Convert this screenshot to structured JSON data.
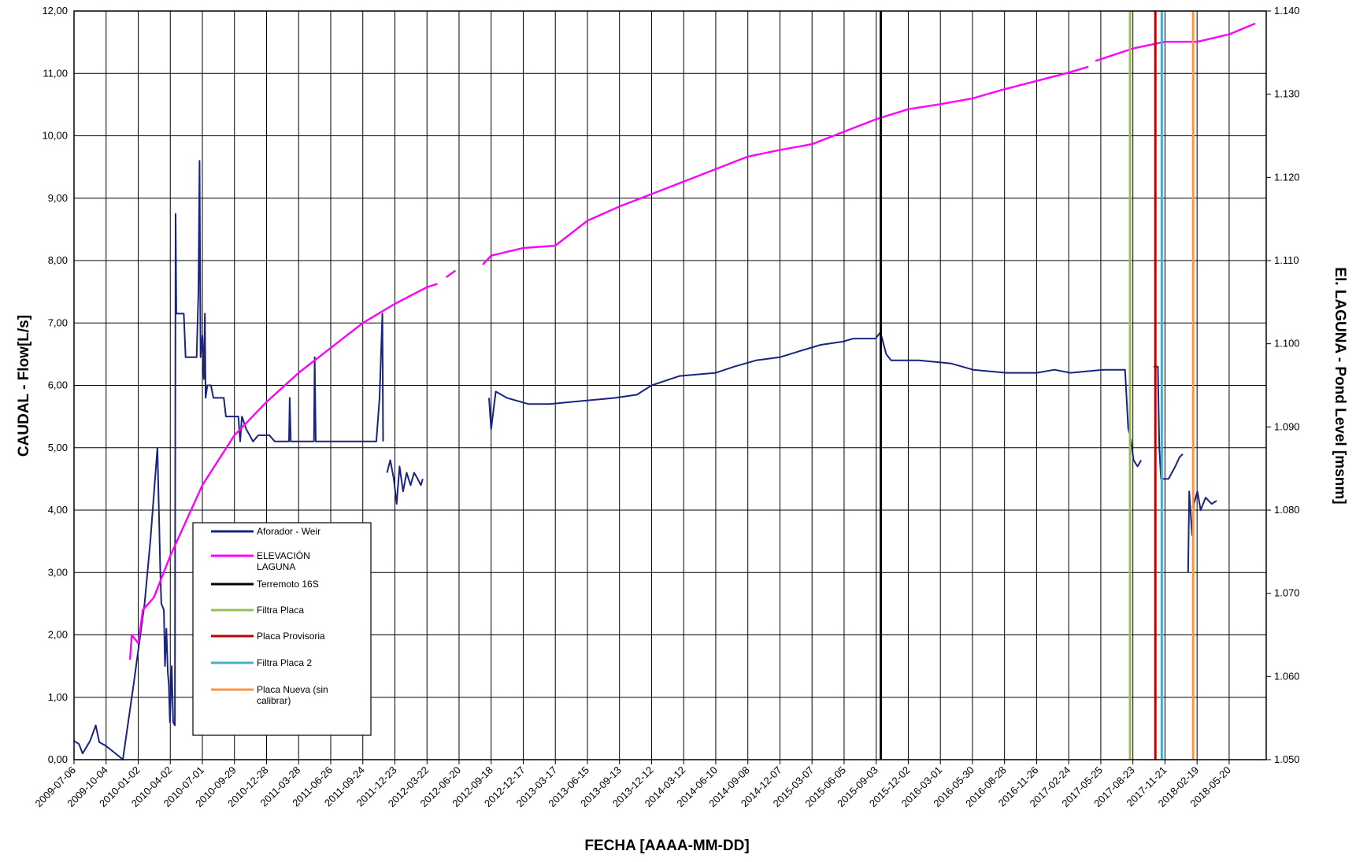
{
  "chart_data": {
    "type": "line",
    "xlabel": "FECHA [AAAA-MM-DD]",
    "ylabel_left": "CAUDAL - Flow[L/s]",
    "ylabel_right": "El. LAGUNA - Pond Level [msnm]",
    "y_left_ticks": [
      "0,00",
      "1,00",
      "2,00",
      "3,00",
      "4,00",
      "5,00",
      "6,00",
      "7,00",
      "8,00",
      "9,00",
      "10,00",
      "11,00",
      "12,00"
    ],
    "y_right_ticks": [
      "1.050",
      "1.060",
      "1.070",
      "1.080",
      "1.090",
      "1.100",
      "1.110",
      "1.120",
      "1.130",
      "1.140"
    ],
    "ylim_left": [
      0,
      12
    ],
    "ylim_right": [
      1050,
      1140
    ],
    "x_range": [
      "2009-07-06",
      "2018-09-01"
    ],
    "x_ticks": [
      "2009-07-06",
      "2009-10-04",
      "2010-01-02",
      "2010-04-02",
      "2010-07-01",
      "2010-09-29",
      "2010-12-28",
      "2011-03-28",
      "2011-06-26",
      "2011-09-24",
      "2011-12-23",
      "2012-03-22",
      "2012-06-20",
      "2012-09-18",
      "2012-12-17",
      "2013-03-17",
      "2013-06-15",
      "2013-09-13",
      "2013-12-12",
      "2014-03-12",
      "2014-06-10",
      "2014-09-08",
      "2014-12-07",
      "2015-03-07",
      "2015-06-05",
      "2015-09-03",
      "2015-12-02",
      "2016-03-01",
      "2016-05-30",
      "2016-08-28",
      "2016-11-26",
      "2017-02-24",
      "2017-05-25",
      "2017-08-23",
      "2017-11-21",
      "2018-02-19",
      "2018-05-20"
    ],
    "grid": true,
    "legend_position": "lower-left",
    "series": [
      {
        "name": "Aforador - Weir",
        "axis": "left",
        "color": "#1a237e",
        "segments": [
          [
            [
              "2009-07-06",
              0.3
            ],
            [
              "2009-07-20",
              0.25
            ],
            [
              "2009-07-30",
              0.1
            ],
            [
              "2009-08-20",
              0.3
            ],
            [
              "2009-09-05",
              0.55
            ],
            [
              "2009-09-15",
              0.28
            ],
            [
              "2009-10-04",
              0.22
            ],
            [
              "2009-11-10",
              0.05
            ],
            [
              "2009-11-20",
              0.0
            ],
            [
              "2009-12-20",
              1.2
            ],
            [
              "2010-01-20",
              2.5
            ],
            [
              "2010-02-05",
              3.5
            ],
            [
              "2010-02-25",
              5.0
            ],
            [
              "2010-03-05",
              3.0
            ],
            [
              "2010-03-08",
              2.5
            ],
            [
              "2010-03-15",
              2.4
            ],
            [
              "2010-03-18",
              1.5
            ],
            [
              "2010-03-22",
              2.1
            ],
            [
              "2010-03-26",
              1.4
            ],
            [
              "2010-03-29",
              1.2
            ],
            [
              "2010-04-01",
              0.6
            ],
            [
              "2010-04-06",
              1.5
            ],
            [
              "2010-04-10",
              0.6
            ],
            [
              "2010-04-15",
              0.55
            ],
            [
              "2010-04-17",
              8.75
            ],
            [
              "2010-04-19",
              7.15
            ],
            [
              "2010-05-10",
              7.15
            ],
            [
              "2010-05-15",
              6.45
            ],
            [
              "2010-06-15",
              6.45
            ],
            [
              "2010-06-20",
              7.5
            ],
            [
              "2010-06-23",
              9.6
            ],
            [
              "2010-06-26",
              6.45
            ],
            [
              "2010-07-01",
              6.8
            ],
            [
              "2010-07-05",
              6.1
            ],
            [
              "2010-07-08",
              7.15
            ],
            [
              "2010-07-10",
              5.8
            ],
            [
              "2010-07-15",
              6.0
            ],
            [
              "2010-07-25",
              6.0
            ],
            [
              "2010-08-01",
              5.8
            ],
            [
              "2010-08-30",
              5.8
            ],
            [
              "2010-09-05",
              5.5
            ],
            [
              "2010-10-10",
              5.5
            ],
            [
              "2010-10-15",
              5.1
            ],
            [
              "2010-10-20",
              5.5
            ],
            [
              "2010-11-01",
              5.3
            ],
            [
              "2010-11-20",
              5.1
            ],
            [
              "2010-12-05",
              5.2
            ],
            [
              "2011-01-05",
              5.2
            ],
            [
              "2011-01-20",
              5.1
            ],
            [
              "2011-03-01",
              5.1
            ],
            [
              "2011-03-03",
              5.8
            ],
            [
              "2011-03-06",
              5.1
            ],
            [
              "2011-05-10",
              5.1
            ],
            [
              "2011-05-12",
              6.45
            ],
            [
              "2011-05-15",
              5.1
            ],
            [
              "2011-10-15",
              5.1
            ],
            [
              "2011-11-01",
              5.1
            ],
            [
              "2011-11-10",
              5.8
            ],
            [
              "2011-11-18",
              7.15
            ],
            [
              "2011-11-20",
              5.1
            ]
          ],
          [
            [
              "2011-12-01",
              4.6
            ],
            [
              "2011-12-10",
              4.8
            ],
            [
              "2011-12-20",
              4.5
            ],
            [
              "2011-12-28",
              4.1
            ],
            [
              "2012-01-05",
              4.7
            ],
            [
              "2012-01-15",
              4.3
            ],
            [
              "2012-01-25",
              4.6
            ],
            [
              "2012-02-05",
              4.4
            ],
            [
              "2012-02-15",
              4.6
            ],
            [
              "2012-02-25",
              4.5
            ],
            [
              "2012-03-05",
              4.4
            ],
            [
              "2012-03-10",
              4.5
            ]
          ],
          [
            [
              "2012-09-12",
              5.8
            ],
            [
              "2012-09-18",
              5.3
            ],
            [
              "2012-10-01",
              5.9
            ],
            [
              "2012-11-01",
              5.8
            ],
            [
              "2013-01-01",
              5.7
            ],
            [
              "2013-03-01",
              5.7
            ],
            [
              "2013-06-01",
              5.75
            ],
            [
              "2013-09-01",
              5.8
            ],
            [
              "2013-11-01",
              5.85
            ],
            [
              "2013-12-12",
              6.0
            ],
            [
              "2014-03-01",
              6.15
            ],
            [
              "2014-06-10",
              6.2
            ],
            [
              "2014-08-01",
              6.3
            ],
            [
              "2014-10-01",
              6.4
            ],
            [
              "2014-12-07",
              6.45
            ],
            [
              "2015-02-01",
              6.55
            ],
            [
              "2015-04-01",
              6.65
            ],
            [
              "2015-06-01",
              6.7
            ],
            [
              "2015-07-01",
              6.75
            ],
            [
              "2015-09-01",
              6.75
            ],
            [
              "2015-09-15",
              6.85
            ],
            [
              "2015-10-01",
              6.5
            ],
            [
              "2015-10-15",
              6.4
            ],
            [
              "2016-01-01",
              6.4
            ],
            [
              "2016-04-01",
              6.35
            ],
            [
              "2016-06-01",
              6.25
            ],
            [
              "2016-09-01",
              6.2
            ],
            [
              "2016-11-26",
              6.2
            ],
            [
              "2017-01-15",
              6.25
            ],
            [
              "2017-03-01",
              6.2
            ],
            [
              "2017-06-01",
              6.25
            ],
            [
              "2017-08-01",
              6.25
            ],
            [
              "2017-08-10",
              5.3
            ],
            [
              "2017-08-15",
              5.2
            ],
            [
              "2017-08-18",
              5.1
            ],
            [
              "2017-08-25",
              4.8
            ],
            [
              "2017-09-05",
              4.7
            ],
            [
              "2017-09-15",
              4.8
            ]
          ],
          [
            [
              "2017-10-20",
              6.3
            ],
            [
              "2017-11-01",
              6.3
            ],
            [
              "2017-11-05",
              5.0
            ],
            [
              "2017-11-10",
              4.5
            ],
            [
              "2017-12-01",
              4.5
            ],
            [
              "2017-12-20",
              4.7
            ],
            [
              "2018-01-01",
              4.85
            ],
            [
              "2018-01-10",
              4.9
            ]
          ],
          [
            [
              "2018-01-25",
              3.0
            ],
            [
              "2018-01-28",
              4.3
            ],
            [
              "2018-02-05",
              3.6
            ],
            [
              "2018-02-10",
              4.1
            ],
            [
              "2018-02-20",
              4.3
            ],
            [
              "2018-03-01",
              4.0
            ],
            [
              "2018-03-15",
              4.2
            ],
            [
              "2018-04-01",
              4.1
            ],
            [
              "2018-04-15",
              4.15
            ]
          ]
        ]
      },
      {
        "name": "ELEVACIÓN LAGUNA",
        "axis": "right",
        "color": "#ff00ff",
        "segments": [
          [
            [
              "2009-12-10",
              1062.0
            ],
            [
              "2009-12-15",
              1065.0
            ],
            [
              "2010-01-02",
              1064.0
            ],
            [
              "2010-01-15",
              1068.0
            ],
            [
              "2010-02-15",
              1069.5
            ],
            [
              "2010-04-02",
              1074.5
            ],
            [
              "2010-07-01",
              1083.0
            ],
            [
              "2010-09-29",
              1089.0
            ],
            [
              "2010-12-28",
              1093.0
            ],
            [
              "2011-03-28",
              1096.5
            ],
            [
              "2011-06-26",
              1099.5
            ],
            [
              "2011-09-24",
              1102.5
            ],
            [
              "2011-12-23",
              1104.8
            ],
            [
              "2012-03-22",
              1106.8
            ],
            [
              "2012-04-20",
              1107.2
            ]
          ],
          [
            [
              "2012-05-15",
              1108.0
            ],
            [
              "2012-06-10",
              1108.8
            ]
          ],
          [
            [
              "2012-08-25",
              1109.5
            ],
            [
              "2012-09-18",
              1110.6
            ],
            [
              "2012-12-17",
              1111.5
            ],
            [
              "2013-03-17",
              1111.8
            ],
            [
              "2013-06-15",
              1114.8
            ],
            [
              "2013-09-13",
              1116.5
            ],
            [
              "2013-12-12",
              1118.0
            ],
            [
              "2014-03-12",
              1119.5
            ],
            [
              "2014-06-10",
              1121.0
            ],
            [
              "2014-09-08",
              1122.5
            ],
            [
              "2014-12-07",
              1123.3
            ],
            [
              "2015-03-07",
              1124.0
            ],
            [
              "2015-06-05",
              1125.5
            ],
            [
              "2015-09-03",
              1127.0
            ],
            [
              "2015-12-02",
              1128.2
            ],
            [
              "2016-03-01",
              1128.8
            ],
            [
              "2016-05-30",
              1129.5
            ],
            [
              "2016-08-28",
              1130.6
            ],
            [
              "2016-11-26",
              1131.6
            ],
            [
              "2017-02-24",
              1132.6
            ],
            [
              "2017-04-20",
              1133.3
            ]
          ],
          [
            [
              "2017-05-10",
              1134.0
            ],
            [
              "2017-08-23",
              1135.5
            ],
            [
              "2017-11-21",
              1136.3
            ],
            [
              "2018-02-19",
              1136.3
            ],
            [
              "2018-05-20",
              1137.2
            ],
            [
              "2018-08-01",
              1138.5
            ]
          ]
        ]
      }
    ],
    "event_markers": [
      {
        "name": "Terremoto 16S",
        "date": "2015-09-16",
        "color": "#000000"
      },
      {
        "name": "Filtra Placa",
        "date": "2017-08-15",
        "color": "#9bbb59"
      },
      {
        "name": "Placa Provisoria",
        "date": "2017-10-25",
        "color": "#c00000"
      },
      {
        "name": "Filtra Placa 2",
        "date": "2017-11-12",
        "color": "#4bacc6"
      },
      {
        "name": "Placa Nueva (sin calibrar)",
        "date": "2018-02-08",
        "color": "#f79646"
      }
    ],
    "legend": [
      {
        "label": "Aforador - Weir",
        "color": "#1a237e"
      },
      {
        "label": "ELEVACIÓN LAGUNA",
        "color": "#ff00ff"
      },
      {
        "label": "Terremoto 16S",
        "color": "#000000"
      },
      {
        "label": "Filtra Placa",
        "color": "#9bbb59"
      },
      {
        "label": "Placa Provisoria",
        "color": "#c00000"
      },
      {
        "label": "Filtra Placa 2",
        "color": "#4bacc6"
      },
      {
        "label": "Placa Nueva (sin calibrar)",
        "color": "#f79646"
      }
    ]
  }
}
